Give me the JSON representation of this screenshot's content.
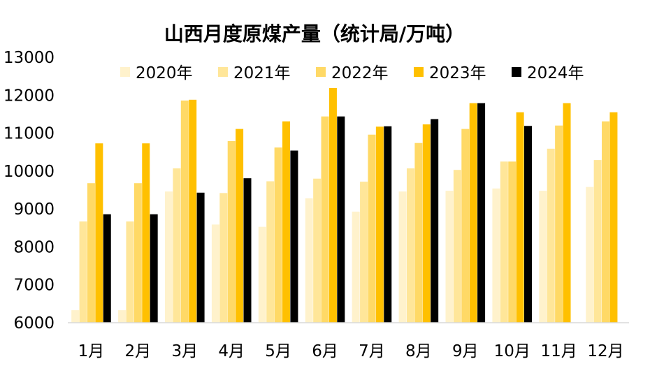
{
  "chart_data": {
    "type": "bar",
    "title": "山西月度原煤产量（统计局/万吨）",
    "xlabel": "",
    "ylabel": "",
    "ylim": [
      6000,
      13000
    ],
    "yticks": [
      "6000",
      "7000",
      "8000",
      "9000",
      "10000",
      "11000",
      "12000",
      "13000"
    ],
    "categories": [
      "1月",
      "2月",
      "3月",
      "4月",
      "5月",
      "6月",
      "7月",
      "8月",
      "9月",
      "10月",
      "11月",
      "12月"
    ],
    "legend_position": "top",
    "grid": false,
    "series": [
      {
        "name": "2020年",
        "color": "#FFF2CC",
        "values": [
          6330,
          6330,
          9460,
          8590,
          8530,
          9280,
          8930,
          9460,
          9480,
          9540,
          9480,
          9580
        ]
      },
      {
        "name": "2021年",
        "color": "#FFE699",
        "values": [
          8670,
          8670,
          10070,
          9420,
          9730,
          9800,
          9720,
          10070,
          10030,
          10250,
          10590,
          10290
        ]
      },
      {
        "name": "2022年",
        "color": "#FFD966",
        "values": [
          9680,
          9680,
          11860,
          10790,
          10620,
          11440,
          10960,
          10740,
          11110,
          10250,
          11200,
          11310
        ]
      },
      {
        "name": "2023年",
        "color": "#FFC000",
        "values": [
          10730,
          10730,
          11880,
          11110,
          11310,
          12190,
          11170,
          11230,
          11790,
          11550,
          11790,
          11550
        ]
      },
      {
        "name": "2024年",
        "color": "#000000",
        "values": [
          8860,
          8860,
          9430,
          9810,
          10540,
          11440,
          11180,
          11370,
          11790,
          11190,
          null,
          null
        ]
      }
    ]
  }
}
